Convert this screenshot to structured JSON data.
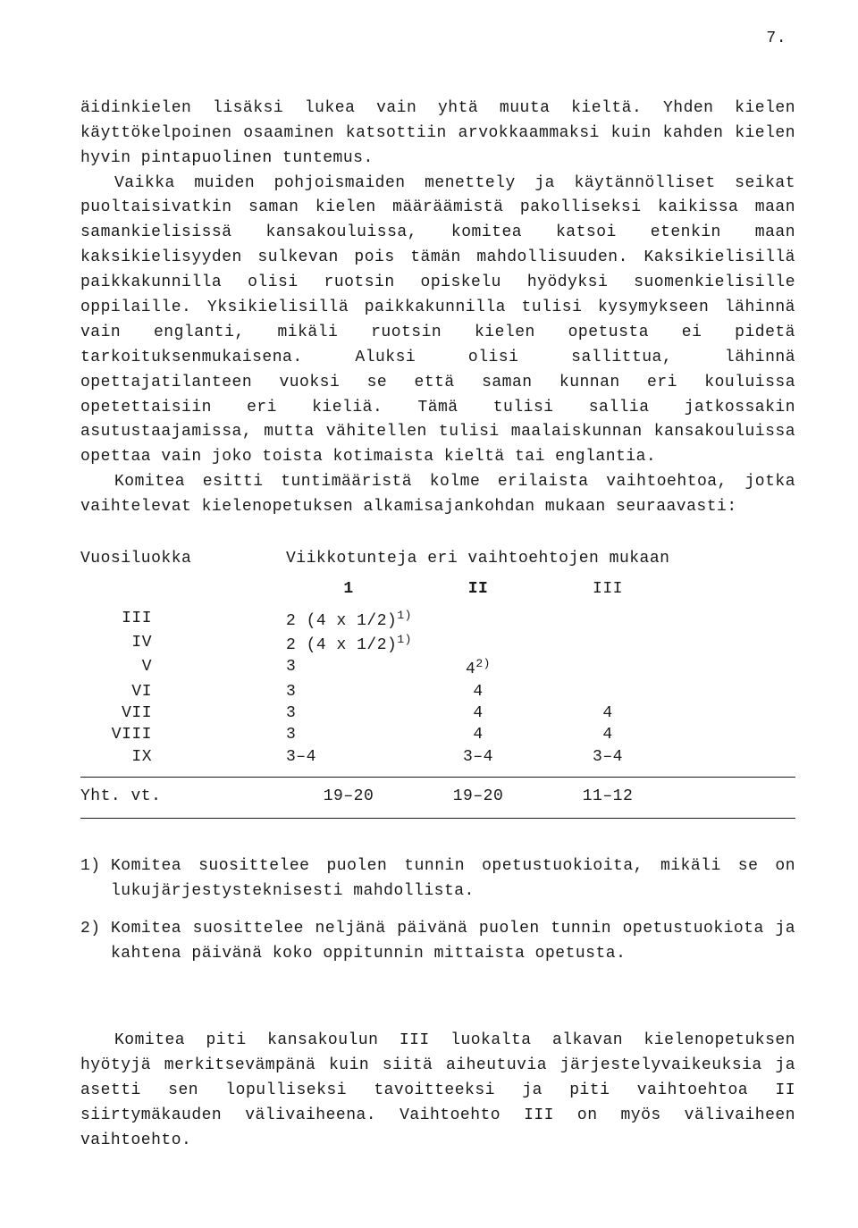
{
  "page_number": "7.",
  "para1": "äidinkielen lisäksi lukea vain yhtä muuta kieltä. Yhden kielen käyttökelpoinen osaaminen katsottiin arvokkaammaksi kuin kahden kielen hyvin pintapuolinen tuntemus.",
  "para2": "Vaikka muiden pohjoismaiden menettely ja käytännölliset seikat puoltaisivatkin saman kielen määräämistä pakolliseksi kaikissa maan samankielisissä kansakouluissa, komitea katsoi etenkin maan kaksikielisyyden sulkevan pois tämän mahdollisuuden. Kaksikielisillä paikkakunnilla olisi ruotsin opiskelu hyödyksi suomenkielisille oppilaille. Yksikielisillä paikkakunnilla tulisi kysymykseen lähinnä vain englanti, mikäli ruotsin kielen opetusta ei pidetä tarkoituksenmukaisena. Aluksi olisi sallittua, lähinnä opettajatilanteen vuoksi se että saman kunnan eri kouluissa opetettaisiin eri kieliä. Tämä tulisi sallia jatkossakin asutustaajamissa, mutta vähitellen tulisi maalaiskunnan kansakouluissa opettaa vain joko toista kotimaista kieltä tai englantia.",
  "para3": "Komitea esitti tuntimääristä kolme erilaista vaihtoehtoa, jotka vaihtelevat kielenopetuksen alkamisajankohdan mukaan seuraavasti:",
  "table": {
    "col_header_left": "Vuosiluokka",
    "col_header_right": "Viikkotunteja eri vaihtoehtojen mukaan",
    "subheads": {
      "c1": "1",
      "c2": "II",
      "c3": "III"
    },
    "rows": [
      {
        "label": "III",
        "c1": "2 (4 x 1/2)",
        "c1_sup": "1)",
        "c2": "",
        "c3": ""
      },
      {
        "label": "IV",
        "c1": "2 (4 x 1/2)",
        "c1_sup": "1)",
        "c2": "",
        "c3": ""
      },
      {
        "label": "V",
        "c1": "3",
        "c1_sup": "",
        "c2": "4",
        "c2_sup": "2)",
        "c3": ""
      },
      {
        "label": "VI",
        "c1": "3",
        "c1_sup": "",
        "c2": "4",
        "c3": ""
      },
      {
        "label": "VII",
        "c1": "3",
        "c1_sup": "",
        "c2": "4",
        "c3": "4"
      },
      {
        "label": "VIII",
        "c1": "3",
        "c1_sup": "",
        "c2": "4",
        "c3": "4"
      },
      {
        "label": "IX",
        "c1": "3–4",
        "c1_sup": "",
        "c2": "3–4",
        "c3": "3–4"
      }
    ],
    "total_label": "Yht. vt.",
    "totals": {
      "c1": "19–20",
      "c2": "19–20",
      "c3": "11–12"
    }
  },
  "footnotes": [
    {
      "num": "1)",
      "text": "Komitea suosittelee puolen tunnin opetustuokioita, mikäli se on lukujärjestysteknisesti mahdollista."
    },
    {
      "num": "2)",
      "text": "Komitea suosittelee neljänä päivänä puolen tunnin opetustuokiota ja kahtena päivänä koko oppitunnin mittaista opetusta."
    }
  ],
  "closing": "Komitea piti kansakoulun III luokalta alkavan kielenopetuksen hyötyjä merkitsevämpänä kuin siitä aiheutuvia järjestelyvaikeuksia ja asetti sen lopulliseksi tavoitteeksi ja piti vaihtoehtoa II siirtymäkauden välivaiheena. Vaihtoehto III on myös välivaiheen vaihtoehto."
}
